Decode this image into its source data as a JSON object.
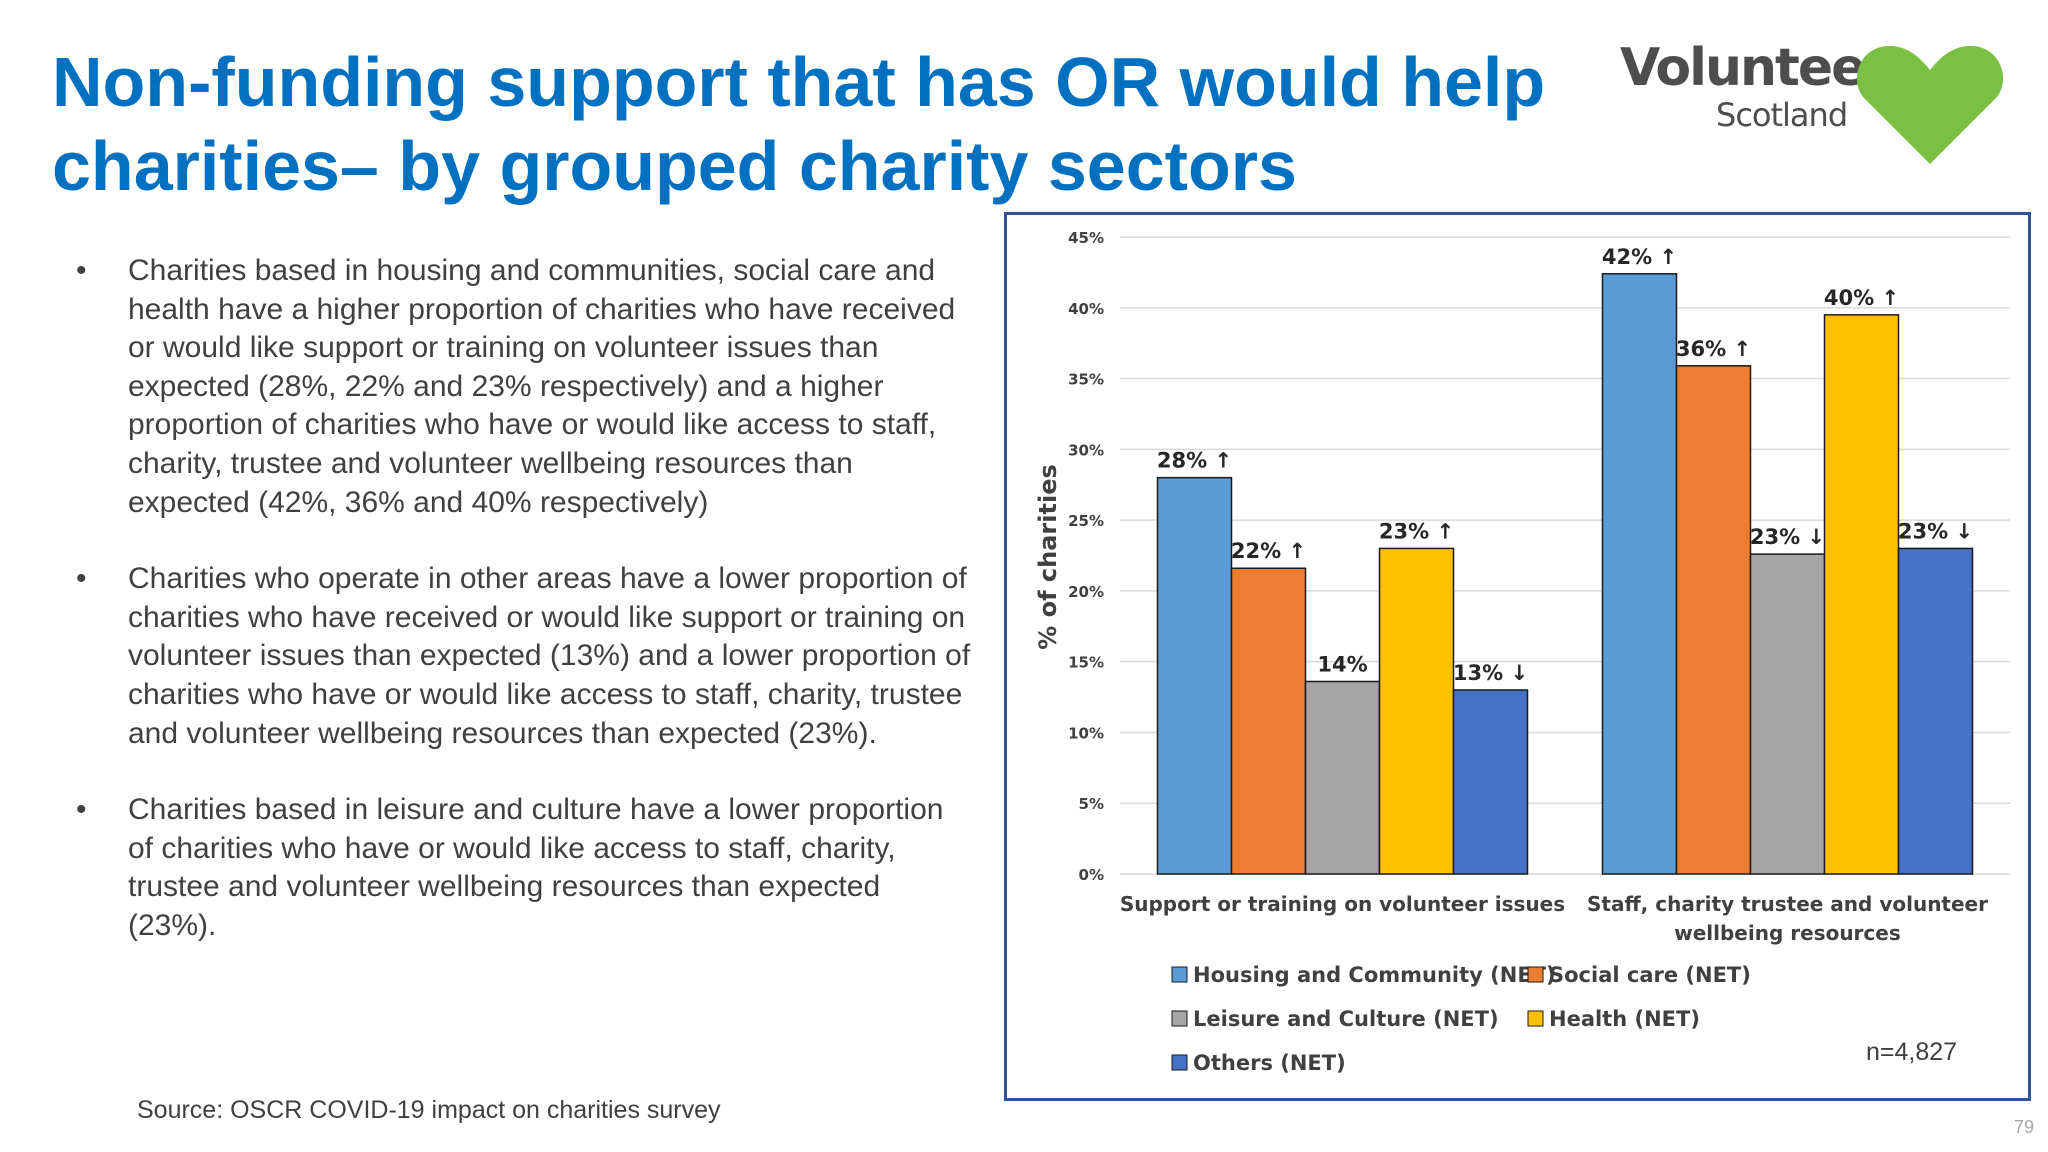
{
  "slide": {
    "title": "Non-funding support that has OR would help charities– by grouped charity sectors",
    "logo": {
      "word": "Volunteer",
      "sub": "Scotland"
    },
    "bullets": [
      "Charities based in housing and communities, social care and health have a higher proportion of charities who have received or would like support or training on volunteer issues than expected (28%, 22% and 23% respectively) and a higher proportion of charities who have or would like access to staff, charity, trustee and volunteer wellbeing resources than expected (42%, 36% and 40% respectively)",
      "Charities who operate in other areas have a lower proportion of charities who have received or would like support or training on volunteer issues than expected (13%) and a lower proportion of charities who have or would like access to staff, charity, trustee and volunteer wellbeing resources than expected (23%).",
      "Charities based in leisure and culture have a lower proportion of charities who have or would like access to staff, charity, trustee and volunteer wellbeing resources than expected (23%)."
    ],
    "bullet_glyph": "•",
    "source": "Source: OSCR COVID-19 impact on charities survey",
    "n_label": "n=4,827",
    "page_number": "79"
  },
  "chart_data": {
    "type": "bar",
    "ylabel": "% of charities",
    "ylim": [
      0,
      45
    ],
    "yticks": [
      "0%",
      "5%",
      "10%",
      "15%",
      "20%",
      "25%",
      "30%",
      "35%",
      "40%",
      "45%"
    ],
    "grid": true,
    "legend_position": "bottom",
    "categories": [
      [
        "Support or training on volunteer issues"
      ],
      [
        "Staff, charity trustee and volunteer",
        "wellbeing resources"
      ]
    ],
    "series": [
      {
        "name": "Housing and Community (NET)",
        "color": "#5b9bd5",
        "values": [
          28,
          42.4
        ],
        "labels": [
          "28% ↑",
          "42% ↑"
        ]
      },
      {
        "name": "Social care (NET)",
        "color": "#ed7d31",
        "values": [
          21.6,
          35.9
        ],
        "labels": [
          "22% ↑",
          "36% ↑"
        ]
      },
      {
        "name": "Leisure and Culture (NET)",
        "color": "#a5a5a5",
        "values": [
          13.6,
          22.6
        ],
        "labels": [
          "14%",
          "23% ↓"
        ]
      },
      {
        "name": "Health (NET)",
        "color": "#ffc000",
        "values": [
          23,
          39.5
        ],
        "labels": [
          "23% ↑",
          "40% ↑"
        ]
      },
      {
        "name": "Others (NET)",
        "color": "#4472c4",
        "values": [
          13,
          23
        ],
        "labels": [
          "13% ↓",
          "23% ↓"
        ]
      }
    ]
  }
}
